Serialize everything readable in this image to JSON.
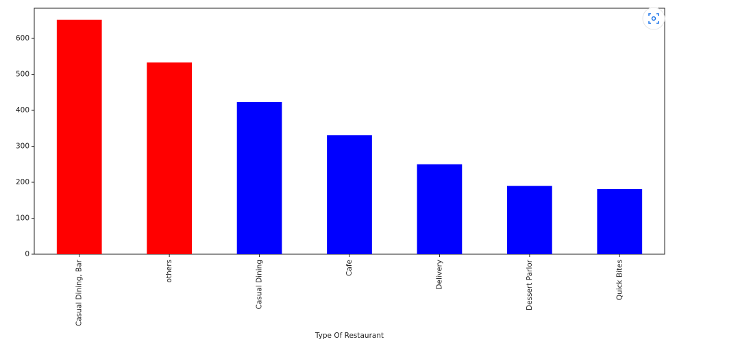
{
  "chart_data": {
    "type": "bar",
    "x_label": "Type Of Restaurant",
    "categories": [
      "Casual Dining, Bar",
      "others",
      "Casual Dining",
      "Cafe",
      "Delivery",
      "Dessert Parlor",
      "Quick Bites"
    ],
    "values": [
      652,
      533,
      423,
      331,
      250,
      190,
      181
    ],
    "colors": [
      "#ff0000",
      "#ff0000",
      "#0000ff",
      "#0000ff",
      "#0000ff",
      "#0000ff",
      "#0000ff"
    ],
    "ylim": [
      0,
      684
    ],
    "yticks": [
      0,
      100,
      200,
      300,
      400,
      500,
      600
    ],
    "grid": false
  }
}
